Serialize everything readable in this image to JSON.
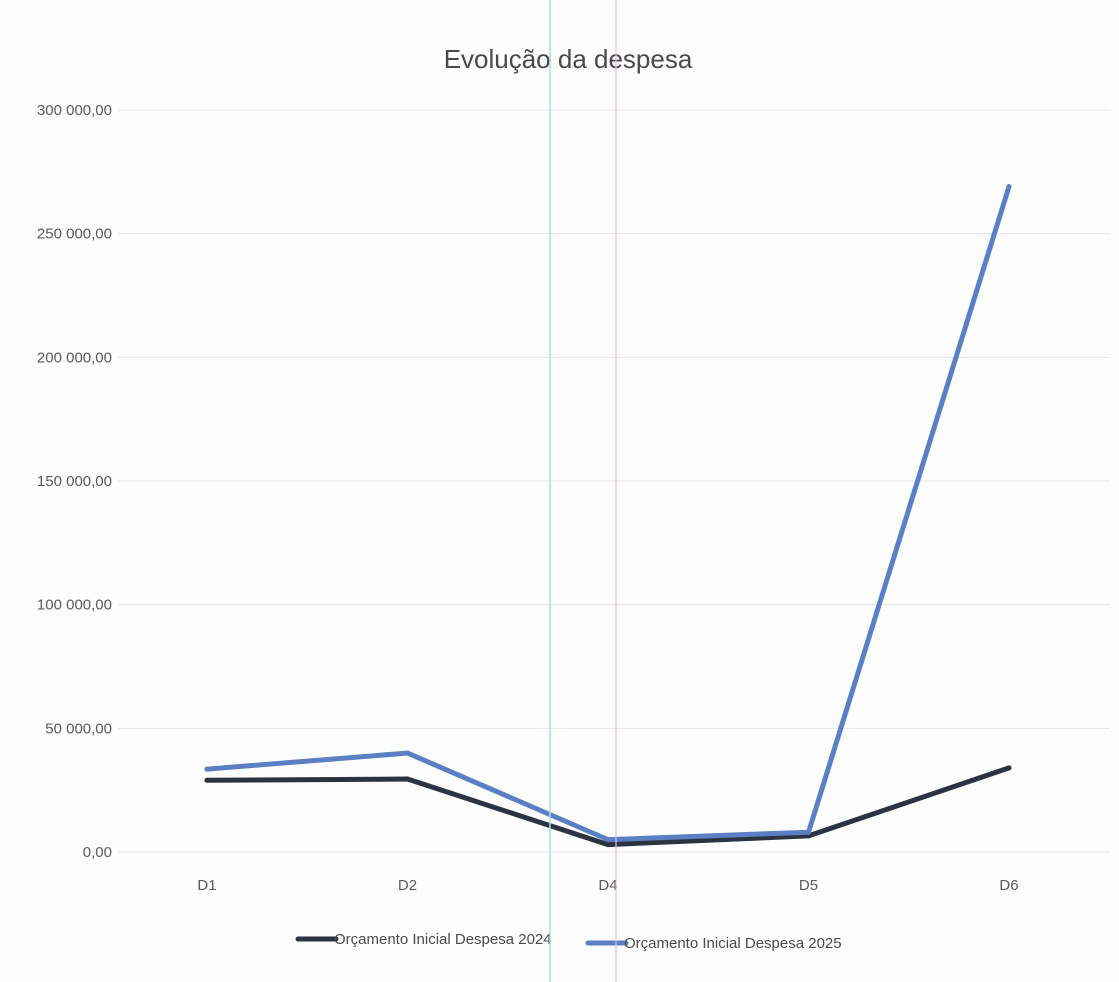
{
  "chart_data": {
    "type": "line",
    "title": "Evolução da despesa",
    "xlabel": "",
    "ylabel": "",
    "categories": [
      "D1",
      "D2",
      "D4",
      "D5",
      "D6"
    ],
    "ylim": [
      0,
      300000
    ],
    "y_ticks": [
      "0,00",
      "50 000,00",
      "100 000,00",
      "150 000,00",
      "200 000,00",
      "250 000,00",
      "300 000,00"
    ],
    "y_tick_values": [
      0,
      50000,
      100000,
      150000,
      200000,
      250000,
      300000
    ],
    "grid": true,
    "legend_position": "bottom",
    "series": [
      {
        "name": "Orçamento Inicial  Despesa 2024",
        "color": "#2b3440",
        "values": [
          29000,
          29500,
          3000,
          6500,
          34000
        ]
      },
      {
        "name": "Orçamento Inicial  Despesa 2025",
        "color": "#5b7fc4",
        "values": [
          33500,
          40000,
          5000,
          8000,
          269000
        ]
      }
    ]
  }
}
